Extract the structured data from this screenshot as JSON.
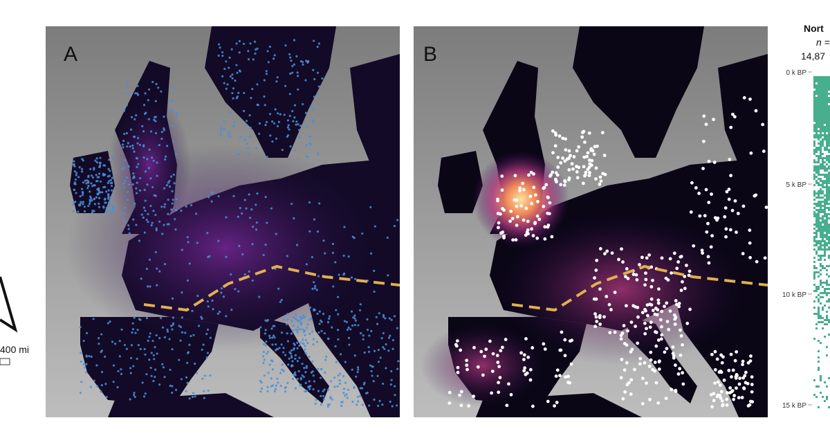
{
  "panels": [
    {
      "label": "A"
    },
    {
      "label": "B"
    }
  ],
  "scale_bar": {
    "label": "400 mi"
  },
  "side_panel": {
    "title": "Nort",
    "n_label": "n =",
    "count": "14,87",
    "axis_labels": [
      "0 k BP",
      "5 k BP",
      "10 k BP",
      "15 k BP"
    ]
  }
}
